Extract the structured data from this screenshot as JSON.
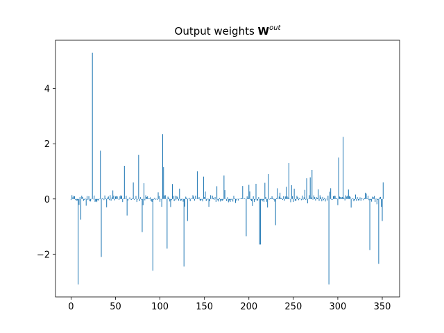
{
  "chart_data": {
    "type": "bar",
    "title": "Output weights ",
    "title_math": "W",
    "title_sup": "out",
    "xlabel": "",
    "ylabel": "",
    "xlim": [
      -17.5,
      369.5
    ],
    "ylim": [
      -3.55,
      5.75
    ],
    "xticks": [
      0,
      50,
      100,
      150,
      200,
      250,
      300,
      350
    ],
    "yticks": [
      -2,
      0,
      2,
      4
    ],
    "ytick_labels": [
      "−2",
      "0",
      "2",
      "4"
    ],
    "grid": false,
    "bar_color": "#1f77b4",
    "n": 352,
    "spikes": [
      {
        "x": 8,
        "y": -3.1
      },
      {
        "x": 11,
        "y": -0.75
      },
      {
        "x": 24,
        "y": 5.3
      },
      {
        "x": 33,
        "y": 1.75
      },
      {
        "x": 34,
        "y": -2.1
      },
      {
        "x": 60,
        "y": 1.2
      },
      {
        "x": 63,
        "y": -0.6
      },
      {
        "x": 76,
        "y": 1.6
      },
      {
        "x": 80,
        "y": -1.2
      },
      {
        "x": 92,
        "y": -2.6
      },
      {
        "x": 103,
        "y": 2.35
      },
      {
        "x": 104,
        "y": 1.15
      },
      {
        "x": 108,
        "y": -1.8
      },
      {
        "x": 127,
        "y": -2.45
      },
      {
        "x": 131,
        "y": -0.8
      },
      {
        "x": 142,
        "y": 1.0
      },
      {
        "x": 172,
        "y": 0.85
      },
      {
        "x": 197,
        "y": -1.35
      },
      {
        "x": 212,
        "y": -1.65
      },
      {
        "x": 213,
        "y": -1.65
      },
      {
        "x": 222,
        "y": 0.9
      },
      {
        "x": 230,
        "y": -0.95
      },
      {
        "x": 245,
        "y": 1.3
      },
      {
        "x": 265,
        "y": 0.75
      },
      {
        "x": 271,
        "y": 1.05
      },
      {
        "x": 290,
        "y": -3.1
      },
      {
        "x": 306,
        "y": 2.25
      },
      {
        "x": 301,
        "y": 1.5
      },
      {
        "x": 336,
        "y": -1.85
      },
      {
        "x": 346,
        "y": -2.35
      },
      {
        "x": 350,
        "y": -0.8
      },
      {
        "x": 351,
        "y": 0.6
      }
    ]
  }
}
